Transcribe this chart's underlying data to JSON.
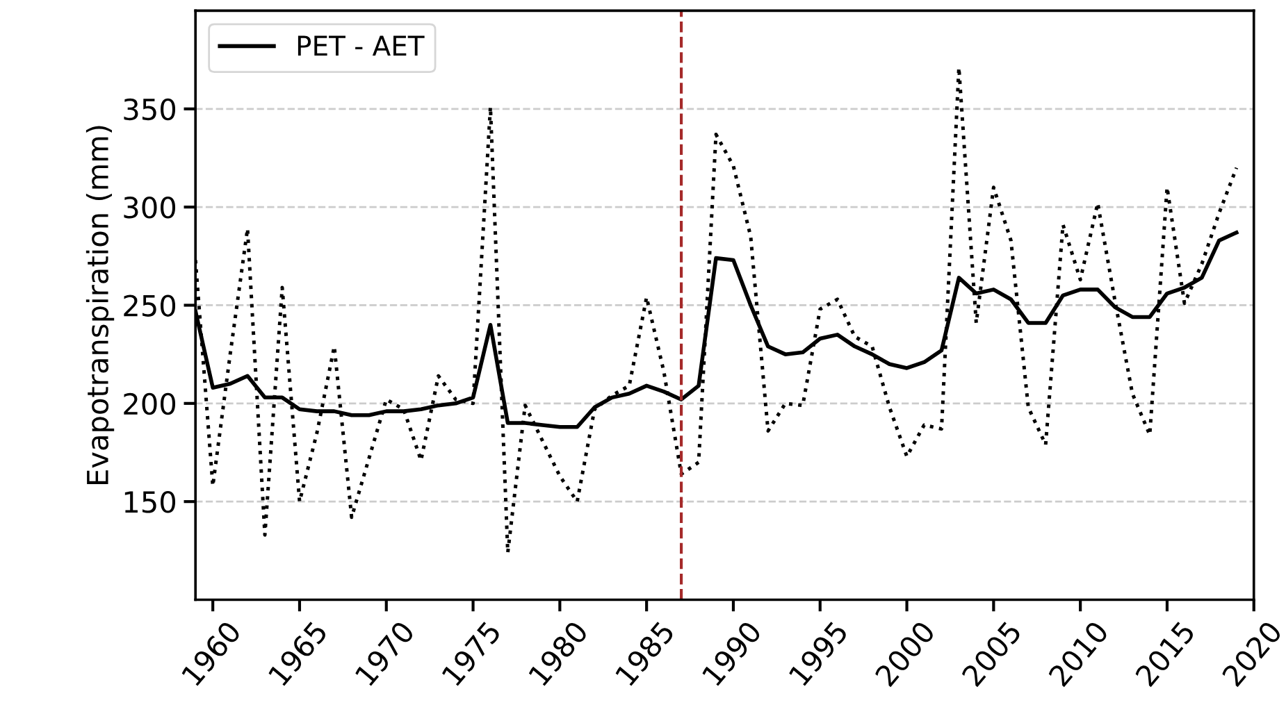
{
  "chart_data": {
    "type": "line",
    "ylabel": "Evapotranspiration (mm)",
    "x": [
      1959,
      1960,
      1961,
      1962,
      1963,
      1964,
      1965,
      1966,
      1967,
      1968,
      1969,
      1970,
      1971,
      1972,
      1973,
      1974,
      1975,
      1976,
      1977,
      1978,
      1979,
      1980,
      1981,
      1982,
      1983,
      1984,
      1985,
      1986,
      1987,
      1988,
      1989,
      1990,
      1991,
      1992,
      1993,
      1994,
      1995,
      1996,
      1997,
      1998,
      1999,
      2000,
      2001,
      2002,
      2003,
      2004,
      2005,
      2006,
      2007,
      2008,
      2009,
      2010,
      2011,
      2012,
      2013,
      2014,
      2015,
      2016,
      2017,
      2018,
      2019
    ],
    "series": [
      {
        "color": "#000000",
        "line_style": "dotted",
        "values": [
          273,
          158,
          225,
          289,
          133,
          259,
          150,
          185,
          229,
          142,
          172,
          202,
          197,
          171,
          214,
          202,
          200,
          351,
          124,
          199,
          181,
          163,
          150,
          197,
          204,
          209,
          254,
          216,
          164,
          170,
          337,
          321,
          285,
          186,
          200,
          199,
          248,
          253,
          234,
          229,
          198,
          173,
          189,
          187,
          371,
          241,
          310,
          283,
          198,
          179,
          291,
          263,
          302,
          252,
          205,
          184,
          310,
          251,
          271,
          297,
          320
        ]
      },
      {
        "name": "PET - AET",
        "color": "#000000",
        "line_style": "solid",
        "values": [
          247,
          208,
          210,
          214,
          203,
          203,
          197,
          196,
          196,
          194,
          194,
          196,
          196,
          197,
          199,
          200,
          203,
          240,
          190,
          190,
          189,
          188,
          188,
          198,
          203,
          205,
          209,
          206,
          202,
          209,
          274,
          273,
          250,
          229,
          225,
          226,
          233,
          235,
          229,
          225,
          220,
          218,
          221,
          227,
          264,
          256,
          258,
          253,
          241,
          241,
          255,
          258,
          258,
          249,
          244,
          244,
          256,
          259,
          264,
          283,
          287
        ]
      }
    ],
    "xlim": [
      1959,
      2020
    ],
    "xticks": [
      1960,
      1965,
      1970,
      1975,
      1980,
      1985,
      1990,
      1995,
      2000,
      2005,
      2010,
      2015,
      2020
    ],
    "ylim": [
      100,
      400
    ],
    "yticks": [
      150,
      200,
      250,
      300,
      350
    ],
    "ref_lines": [
      {
        "axis": "x",
        "value": 1987,
        "color": "#a52a2a",
        "line_style": "dashed"
      }
    ],
    "grid": "y",
    "legend": "top left",
    "marker": "none"
  }
}
